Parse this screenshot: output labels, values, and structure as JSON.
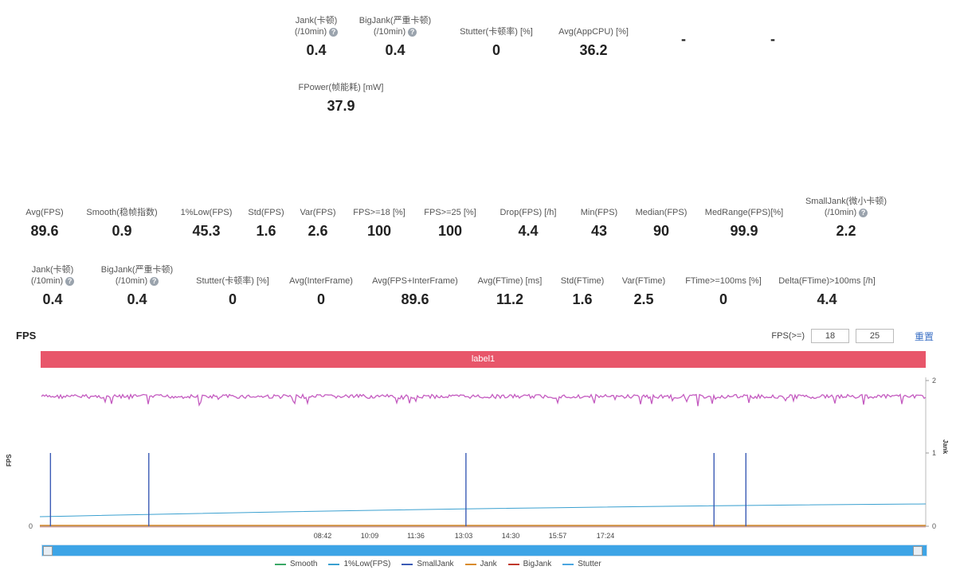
{
  "top_metrics": [
    {
      "label1": "Jank(卡顿)",
      "label2": "(/10min)",
      "help": true,
      "value": "0.4"
    },
    {
      "label1": "BigJank(严重卡顿)",
      "label2": "(/10min)",
      "help": true,
      "value": "0.4"
    },
    {
      "label1": "Stutter(卡顿率) [%]",
      "label2": "",
      "help": false,
      "value": "0"
    },
    {
      "label1": "Avg(AppCPU) [%]",
      "label2": "",
      "help": true,
      "value": "36.2"
    },
    {
      "label1": "",
      "label2": "",
      "help": false,
      "value": "-"
    },
    {
      "label1": "",
      "label2": "",
      "help": false,
      "value": "-"
    },
    {
      "label1": "FPower(帧能耗) [mW]",
      "label2": "",
      "help": false,
      "value": "37.9"
    }
  ],
  "row1_metrics": [
    {
      "label1": "Avg(FPS)",
      "label2": "",
      "help": false,
      "value": "89.6"
    },
    {
      "label1": "Smooth(稳帧指数)",
      "label2": "",
      "help": true,
      "value": "0.9"
    },
    {
      "label1": "1%Low(FPS)",
      "label2": "",
      "help": false,
      "value": "45.3"
    },
    {
      "label1": "Std(FPS)",
      "label2": "",
      "help": false,
      "value": "1.6"
    },
    {
      "label1": "Var(FPS)",
      "label2": "",
      "help": false,
      "value": "2.6"
    },
    {
      "label1": "FPS>=18 [%]",
      "label2": "",
      "help": false,
      "value": "100"
    },
    {
      "label1": "FPS>=25 [%]",
      "label2": "",
      "help": false,
      "value": "100"
    },
    {
      "label1": "Drop(FPS) [/h]",
      "label2": "",
      "help": true,
      "value": "4.4"
    },
    {
      "label1": "Min(FPS)",
      "label2": "",
      "help": false,
      "value": "43"
    },
    {
      "label1": "Median(FPS)",
      "label2": "",
      "help": false,
      "value": "90"
    },
    {
      "label1": "MedRange(FPS)[%]",
      "label2": "",
      "help": false,
      "value": "99.9"
    },
    {
      "label1": "SmallJank(微小卡顿)",
      "label2": "(/10min)",
      "help": true,
      "value": "2.2"
    }
  ],
  "row2_metrics": [
    {
      "label1": "Jank(卡顿)",
      "label2": "(/10min)",
      "help": true,
      "value": "0.4"
    },
    {
      "label1": "BigJank(严重卡顿)",
      "label2": "(/10min)",
      "help": true,
      "value": "0.4"
    },
    {
      "label1": "Stutter(卡顿率) [%]",
      "label2": "",
      "help": false,
      "value": "0"
    },
    {
      "label1": "Avg(InterFrame)",
      "label2": "",
      "help": false,
      "value": "0"
    },
    {
      "label1": "Avg(FPS+InterFrame)",
      "label2": "",
      "help": false,
      "value": "89.6"
    },
    {
      "label1": "Avg(FTime) [ms]",
      "label2": "",
      "help": false,
      "value": "11.2"
    },
    {
      "label1": "Std(FTime)",
      "label2": "",
      "help": false,
      "value": "1.6"
    },
    {
      "label1": "Var(FTime)",
      "label2": "",
      "help": false,
      "value": "2.5"
    },
    {
      "label1": "FTime>=100ms [%]",
      "label2": "",
      "help": false,
      "value": "0"
    },
    {
      "label1": "Delta(FTime)>100ms [/h]",
      "label2": "",
      "help": true,
      "value": "4.4"
    }
  ],
  "fps_section": {
    "title": "FPS",
    "filter_label": "FPS(>=)",
    "threshold_1": "18",
    "threshold_2": "25",
    "reset_label": "重置",
    "band_label": "label1"
  },
  "chart_data": {
    "type": "line",
    "x_ticks": [
      "08:42",
      "10:09",
      "11:36",
      "13:03",
      "14:30",
      "15:57",
      "17:24"
    ],
    "y_left_label": "FPS",
    "y_right_label": "Jank",
    "y_right_ticks": [
      "0",
      "1",
      "2"
    ],
    "y_left_ticks": [
      "0"
    ],
    "fps_level": 90,
    "jank_spikes_fraction": [
      0.012,
      0.123,
      0.481,
      0.761,
      0.797
    ],
    "colors": {
      "fps": "#c45bc0",
      "smooth": "#3aa866",
      "low1": "#3aa0d0",
      "smalljank": "#3b5bb5",
      "jank": "#d98b2b",
      "bigjank": "#c0392b",
      "stutter": "#4aa6e0"
    }
  },
  "legend": [
    {
      "label": "Smooth",
      "color": "#3aa866"
    },
    {
      "label": "1%Low(FPS)",
      "color": "#3aa0d0"
    },
    {
      "label": "SmallJank",
      "color": "#3b5bb5"
    },
    {
      "label": "Jank",
      "color": "#d98b2b"
    },
    {
      "label": "BigJank",
      "color": "#c0392b"
    },
    {
      "label": "Stutter",
      "color": "#4aa6e0"
    }
  ]
}
